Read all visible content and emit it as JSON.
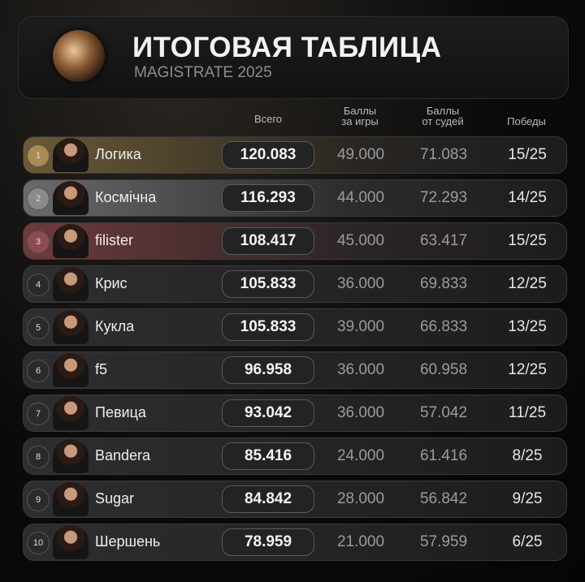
{
  "header": {
    "title": "ИТОГОВАЯ ТАБЛИЦА",
    "subtitle": "MAGISTRATE 2025"
  },
  "table": {
    "columns": [
      "Всего",
      "Баллы\nза игры",
      "Баллы\nот судей",
      "Победы"
    ],
    "rows": [
      [
        "1",
        "Логика",
        "120.083",
        "49.000",
        "71.083",
        "15/25"
      ],
      [
        "2",
        "Космічна",
        "116.293",
        "44.000",
        "72.293",
        "14/25"
      ],
      [
        "3",
        "filister",
        "108.417",
        "45.000",
        "63.417",
        "15/25"
      ],
      [
        "4",
        "Крис",
        "105.833",
        "36.000",
        "69.833",
        "12/25"
      ],
      [
        "5",
        "Кукла",
        "105.833",
        "39.000",
        "66.833",
        "13/25"
      ],
      [
        "6",
        "f5",
        "96.958",
        "36.000",
        "60.958",
        "12/25"
      ],
      [
        "7",
        "Певица",
        "93.042",
        "36.000",
        "57.042",
        "11/25"
      ],
      [
        "8",
        "Bandera",
        "85.416",
        "24.000",
        "61.416",
        "8/25"
      ],
      [
        "9",
        "Sugar",
        "84.842",
        "28.000",
        "56.842",
        "9/25"
      ],
      [
        "10",
        "Шершень",
        "78.959",
        "21.000",
        "57.959",
        "6/25"
      ]
    ]
  }
}
